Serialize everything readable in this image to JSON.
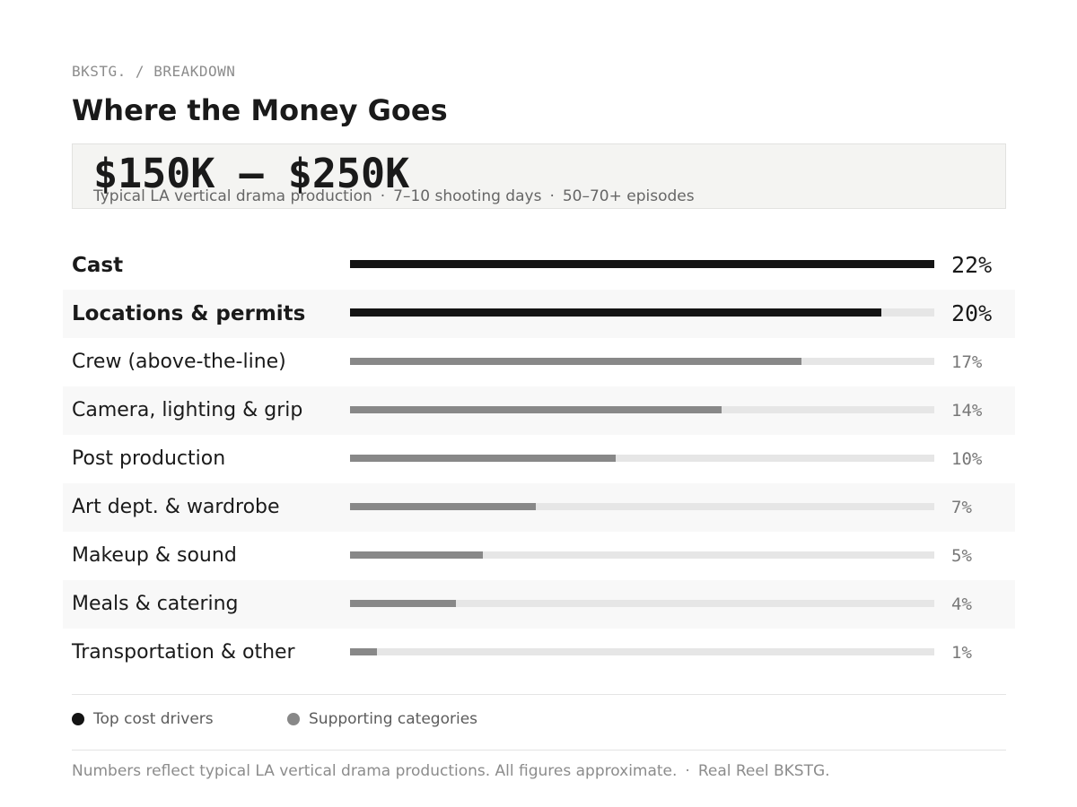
{
  "header": {
    "eyebrow": "BKSTG. / BREAKDOWN",
    "title": "Where the Money Goes"
  },
  "hero": {
    "amount": "$150K – $250K",
    "details": [
      "Typical LA vertical drama production",
      "7–10 shooting days",
      "50–70+ episodes"
    ],
    "separator": "·"
  },
  "colors": {
    "top_cost_drivers": "#141414",
    "supporting_categories": "#888888",
    "track": "#e6e6e6"
  },
  "chart_data": {
    "type": "bar",
    "orientation": "horizontal",
    "title": "Where the Money Goes",
    "unit": "%",
    "xlim": [
      0,
      22
    ],
    "categories": [
      "Cast",
      "Locations & permits",
      "Crew (above-the-line)",
      "Camera, lighting & grip",
      "Post production",
      "Art dept. & wardrobe",
      "Makeup & sound",
      "Meals & catering",
      "Transportation & other"
    ],
    "values": [
      22,
      20,
      17,
      14,
      10,
      7,
      5,
      4,
      1
    ],
    "value_labels": [
      "22%",
      "20%",
      "17%",
      "14%",
      "10%",
      "7%",
      "5%",
      "4%",
      "1%"
    ],
    "groups": [
      "top",
      "top",
      "support",
      "support",
      "support",
      "support",
      "support",
      "support",
      "support"
    ],
    "legend": [
      {
        "name": "Top cost drivers",
        "group": "top"
      },
      {
        "name": "Supporting categories",
        "group": "support"
      }
    ],
    "legend_position": "bottom-left"
  },
  "footer": {
    "note": "Numbers reflect typical LA vertical drama productions. All figures approximate.",
    "separator": "·",
    "credit": "Real Reel BKSTG."
  }
}
